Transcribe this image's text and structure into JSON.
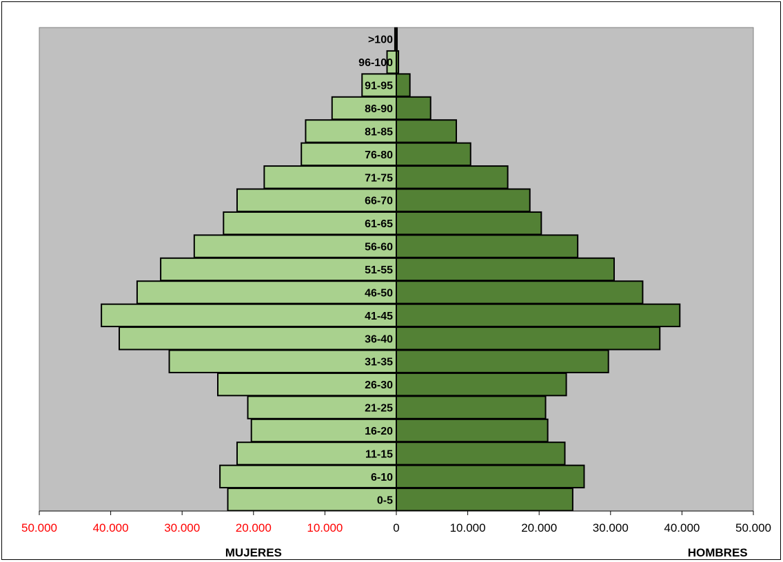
{
  "chart_data": {
    "type": "bar",
    "orientation": "horizontal",
    "subtype": "population-pyramid",
    "categories": [
      "0-5",
      "6-10",
      "11-15",
      "16-20",
      "21-25",
      "26-30",
      "31-35",
      "36-40",
      "41-45",
      "46-50",
      "51-55",
      "56-60",
      "61-65",
      "66-70",
      "71-75",
      "76-80",
      "81-85",
      "86-90",
      "91-95",
      "96-100",
      ">100"
    ],
    "series": [
      {
        "name": "MUJERES",
        "side": "left",
        "color": "#a9d18e",
        "values": [
          23600,
          24700,
          22300,
          20300,
          20800,
          25000,
          31800,
          38800,
          41300,
          36300,
          33000,
          28300,
          24200,
          22300,
          18500,
          13300,
          12700,
          9000,
          4800,
          1300,
          200
        ]
      },
      {
        "name": "HOMBRES",
        "side": "right",
        "color": "#538135",
        "values": [
          24700,
          26300,
          23600,
          21200,
          20900,
          23800,
          29700,
          36900,
          39700,
          34500,
          30500,
          25400,
          20300,
          18700,
          15600,
          10400,
          8400,
          4800,
          1900,
          300,
          100
        ]
      }
    ],
    "xlim": [
      -50000,
      50000
    ],
    "x_ticks": [
      {
        "value": -50000,
        "label": "50.000"
      },
      {
        "value": -40000,
        "label": "40.000"
      },
      {
        "value": -30000,
        "label": "30.000"
      },
      {
        "value": -20000,
        "label": "20.000"
      },
      {
        "value": -10000,
        "label": "10.000"
      },
      {
        "value": 0,
        "label": "0"
      },
      {
        "value": 10000,
        "label": "10.000"
      },
      {
        "value": 20000,
        "label": "20.000"
      },
      {
        "value": 30000,
        "label": "30.000"
      },
      {
        "value": 40000,
        "label": "40.000"
      },
      {
        "value": 50000,
        "label": "50.000"
      }
    ],
    "left_tick_color": "#ff0000",
    "right_tick_color": "#000000",
    "plot_background": "#c0c0c0",
    "grid": false,
    "legend": "none",
    "left_axis_title": "MUJERES",
    "right_axis_title": "HOMBRES"
  }
}
